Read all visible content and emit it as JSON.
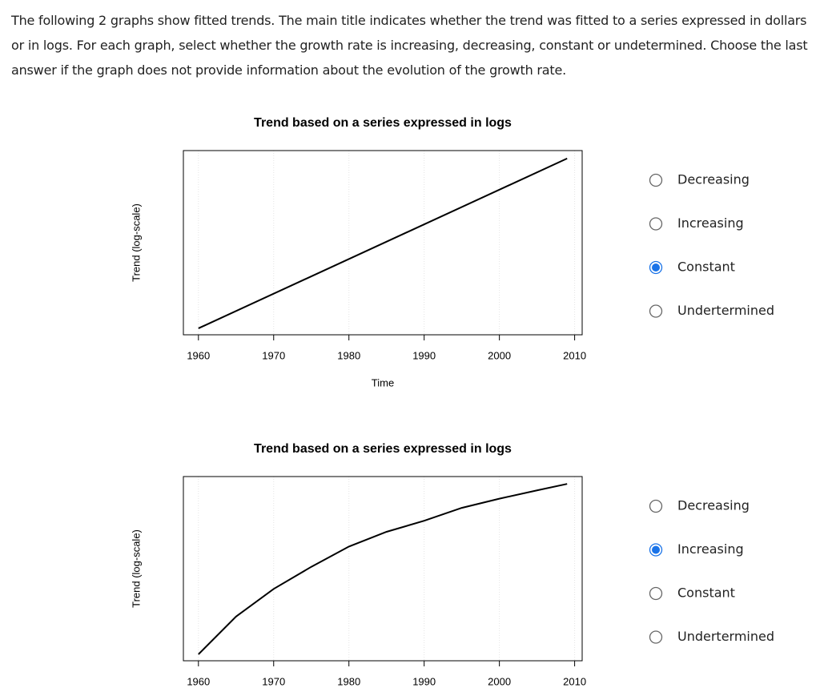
{
  "instructions": "The following 2 graphs show fitted trends. The main title indicates whether the trend was fitted to a series expressed in dollars or in logs. For each graph, select whether the growth rate is increasing, decreasing, constant or undetermined. Choose the last answer if the graph does not provide information about the evolution of the growth rate.",
  "questions": [
    {
      "chart_data": {
        "type": "line",
        "title": "Trend based on a series expressed in logs",
        "xlabel": "Time",
        "ylabel": "Trend (log-scale)",
        "x": [
          1960,
          2009
        ],
        "values": [
          0.035,
          0.957
        ],
        "color": "#000000",
        "xlim": [
          1958,
          2011
        ],
        "ylim": [
          0,
          1
        ],
        "xticks": [
          1960,
          1970,
          1980,
          1990,
          2000,
          2010
        ],
        "grid": true
      },
      "options": [
        "Decreasing",
        "Increasing",
        "Constant",
        "Undertermined"
      ],
      "selected": 2
    },
    {
      "chart_data": {
        "type": "line",
        "title": "Trend based on a series expressed in logs",
        "ylabel": "Trend (log-scale)",
        "x": [
          1960,
          1965,
          1970,
          1975,
          1980,
          1985,
          1990,
          1995,
          2000,
          2005,
          2009
        ],
        "values": [
          0.035,
          0.24,
          0.39,
          0.51,
          0.62,
          0.7,
          0.76,
          0.83,
          0.88,
          0.925,
          0.96
        ],
        "color": "#000000",
        "xlim": [
          1958,
          2011
        ],
        "ylim": [
          0,
          1
        ],
        "xticks": [
          1960,
          1970,
          1980,
          1990,
          2000,
          2010
        ],
        "grid": true
      },
      "options": [
        "Decreasing",
        "Increasing",
        "Constant",
        "Undertermined"
      ],
      "selected": 1
    }
  ]
}
